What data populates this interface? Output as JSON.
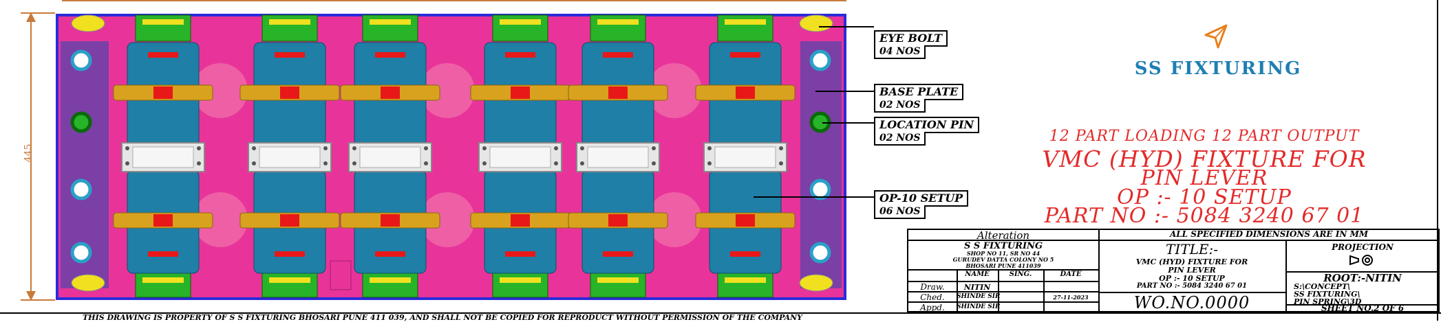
{
  "dimension": {
    "height_label": "445"
  },
  "callouts": [
    {
      "id": "eye-bolt",
      "label": "EYE BOLT",
      "qty": "04 NOS"
    },
    {
      "id": "base-plate",
      "label": "BASE PLATE",
      "qty": "02 NOS"
    },
    {
      "id": "location-pin",
      "label": "LOCATION PIN",
      "qty": "02 NOS"
    },
    {
      "id": "op10-setup",
      "label": "OP-10 SETUP",
      "qty": "06 NOS"
    }
  ],
  "company": {
    "name": "SS FIXTURING",
    "logo_icon": "paper-plane-icon"
  },
  "title_block_heading": {
    "line1": "12 PART LOADING 12 PART OUTPUT",
    "line2": "VMC (HYD) FIXTURE FOR",
    "line3": "PIN LEVER",
    "line4": "OP :- 10 SETUP",
    "line5": "PART NO :- 5084 3240 67 01"
  },
  "title_block": {
    "alteration": "Alteration",
    "company_name": "S S FIXTURING",
    "address1": "SHOP NO 11, SR NO 44",
    "address2": "GURUDEV DATTA COLONY NO 5",
    "address3": "BHOSARI PUNE 411039",
    "col_name": "NAME",
    "col_sign": "SING.",
    "col_date": "DATE",
    "drwn_label": "Draw.",
    "drwn_name": "NITIN",
    "ched_label": "Ched.",
    "ched_name": "SHINDE SIR",
    "appd_label": "Appd.",
    "appd_name": "SHINDE SIR",
    "date": "27-11-2023",
    "dims_note": "ALL SPECIFIED DIMENSIONS ARE IN MM",
    "title_label": "TITLE:-",
    "title_l1": "VMC (HYD) FIXTURE FOR",
    "title_l2": "PIN LEVER",
    "title_l3": "OP :- 10 SETUP",
    "title_l4": "PART NO :- 5084 3240 67 01",
    "wo": "WO.NO.0000",
    "projection_label": "PROJECTION",
    "projection_symbol": "first-angle-projection-icon",
    "root_label": "ROOT:-NITIN",
    "path1": "S:\\CONCEPT\\",
    "path2": "SS FIXTURING\\",
    "path3": "PIN SPRING\\3D",
    "sheet": "SHEET NO.2 OF 6"
  },
  "footer_note": "THIS DRAWING IS PROPERTY OF S S FIXTURING BHOSARI PUNE 411 039, AND SHALL NOT BE COPIED FOR REPRODUCT WITHOUT PERMISSION OF THE COMPANY",
  "colors": {
    "plate": "#e8349a",
    "frame": "#2b2bd8",
    "rail": "#7b3fa6",
    "cylinder": "#1f7fa6",
    "clamp": "#d8a21f",
    "green": "#28b428",
    "red": "#e81818",
    "yellow": "#f0e020",
    "title_red": "#e32a2a",
    "logo_blue": "#1e7fb3"
  }
}
